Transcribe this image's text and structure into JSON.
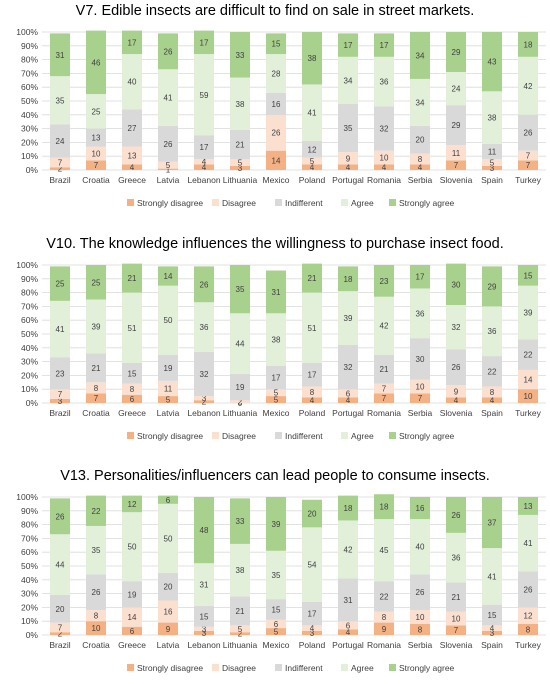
{
  "legend_labels": [
    "Strongly disagree",
    "Disagree",
    "Indifferent",
    "Agree",
    "Strongly agree"
  ],
  "colors": {
    "strongly_disagree": "#f4b183",
    "disagree": "#fbe0d0",
    "indifferent": "#d9d9d9",
    "agree": "#e2efd9",
    "strongly_agree": "#a9d18e",
    "axis_text": "#404040",
    "grid": "#d9d9d9"
  },
  "chart_data": [
    {
      "type": "bar",
      "stacked": true,
      "percent": true,
      "title": "V7. Edible insects are difficult to find on sale in street markets.",
      "categories": [
        "Brazil",
        "Croatia",
        "Greece",
        "Latvia",
        "Lebanon",
        "Lithuania",
        "Mexico",
        "Poland",
        "Portugal",
        "Romania",
        "Serbia",
        "Slovenia",
        "Spain",
        "Turkey"
      ],
      "ylim": [
        0,
        100
      ],
      "yticks": [
        "0%",
        "10%",
        "20%",
        "30%",
        "40%",
        "50%",
        "60%",
        "70%",
        "80%",
        "90%",
        "100%"
      ],
      "legend": "bottom",
      "series": [
        {
          "name": "Strongly disagree",
          "values": [
            2,
            7,
            4,
            1,
            4,
            3,
            14,
            4,
            4,
            4,
            4,
            7,
            3,
            7
          ]
        },
        {
          "name": "Disagree",
          "values": [
            7,
            10,
            13,
            5,
            4,
            5,
            26,
            5,
            9,
            10,
            8,
            11,
            5,
            7
          ]
        },
        {
          "name": "Indifferent",
          "values": [
            24,
            13,
            27,
            26,
            17,
            21,
            16,
            12,
            35,
            32,
            20,
            29,
            11,
            26
          ]
        },
        {
          "name": "Agree",
          "values": [
            35,
            25,
            40,
            41,
            59,
            38,
            28,
            41,
            34,
            36,
            34,
            24,
            38,
            42
          ]
        },
        {
          "name": "Strongly agree",
          "values": [
            31,
            46,
            17,
            26,
            17,
            33,
            15,
            38,
            17,
            17,
            34,
            29,
            43,
            18
          ]
        }
      ]
    },
    {
      "type": "bar",
      "stacked": true,
      "percent": true,
      "title": "V10. The knowledge influences the willingness to purchase insect food.",
      "categories": [
        "Brazil",
        "Croatia",
        "Greece",
        "Latvia",
        "Lebanon",
        "Lithuania",
        "Mexico",
        "Poland",
        "Portugal",
        "Romania",
        "Serbia",
        "Slovenia",
        "Spain",
        "Turkey"
      ],
      "ylim": [
        0,
        100
      ],
      "yticks": [
        "0%",
        "10%",
        "20%",
        "30%",
        "40%",
        "50%",
        "60%",
        "70%",
        "80%",
        "90%",
        "100%"
      ],
      "legend": "bottom",
      "series": [
        {
          "name": "Strongly disagree",
          "values": [
            3,
            7,
            6,
            5,
            2,
            0,
            5,
            4,
            4,
            7,
            7,
            4,
            4,
            10
          ]
        },
        {
          "name": "Disagree",
          "values": [
            7,
            8,
            8,
            11,
            3,
            2,
            5,
            8,
            6,
            7,
            10,
            9,
            8,
            14
          ]
        },
        {
          "name": "Indifferent",
          "values": [
            23,
            21,
            15,
            19,
            32,
            19,
            17,
            17,
            32,
            21,
            30,
            26,
            22,
            22
          ]
        },
        {
          "name": "Agree",
          "values": [
            41,
            39,
            51,
            50,
            36,
            44,
            38,
            51,
            39,
            42,
            36,
            32,
            36,
            39
          ]
        },
        {
          "name": "Strongly agree",
          "values": [
            25,
            25,
            21,
            14,
            26,
            35,
            31,
            21,
            18,
            23,
            17,
            30,
            29,
            15
          ]
        }
      ]
    },
    {
      "type": "bar",
      "stacked": true,
      "percent": true,
      "title": "V13. Personalities/influencers can lead people to consume insects.",
      "categories": [
        "Brazil",
        "Croatia",
        "Greece",
        "Latvia",
        "Lebanon",
        "Lithuania",
        "Mexico",
        "Poland",
        "Portugal",
        "Romania",
        "Serbia",
        "Slovenia",
        "Spain",
        "Turkey"
      ],
      "ylim": [
        0,
        100
      ],
      "yticks": [
        "0%",
        "10%",
        "20%",
        "30%",
        "40%",
        "50%",
        "60%",
        "70%",
        "80%",
        "90%",
        "100%"
      ],
      "legend": "bottom",
      "series": [
        {
          "name": "Strongly disagree",
          "values": [
            2,
            10,
            6,
            9,
            3,
            2,
            5,
            3,
            4,
            9,
            8,
            7,
            3,
            8
          ]
        },
        {
          "name": "Disagree",
          "values": [
            7,
            8,
            14,
            16,
            3,
            5,
            6,
            4,
            6,
            8,
            10,
            10,
            4,
            12
          ]
        },
        {
          "name": "Indifferent",
          "values": [
            20,
            26,
            19,
            20,
            15,
            21,
            15,
            17,
            31,
            22,
            26,
            21,
            15,
            26
          ]
        },
        {
          "name": "Agree",
          "values": [
            44,
            35,
            50,
            50,
            31,
            38,
            35,
            54,
            42,
            45,
            40,
            36,
            41,
            41
          ]
        },
        {
          "name": "Strongly agree",
          "values": [
            26,
            22,
            12,
            6,
            48,
            33,
            39,
            20,
            18,
            18,
            16,
            26,
            37,
            13
          ]
        }
      ]
    }
  ]
}
